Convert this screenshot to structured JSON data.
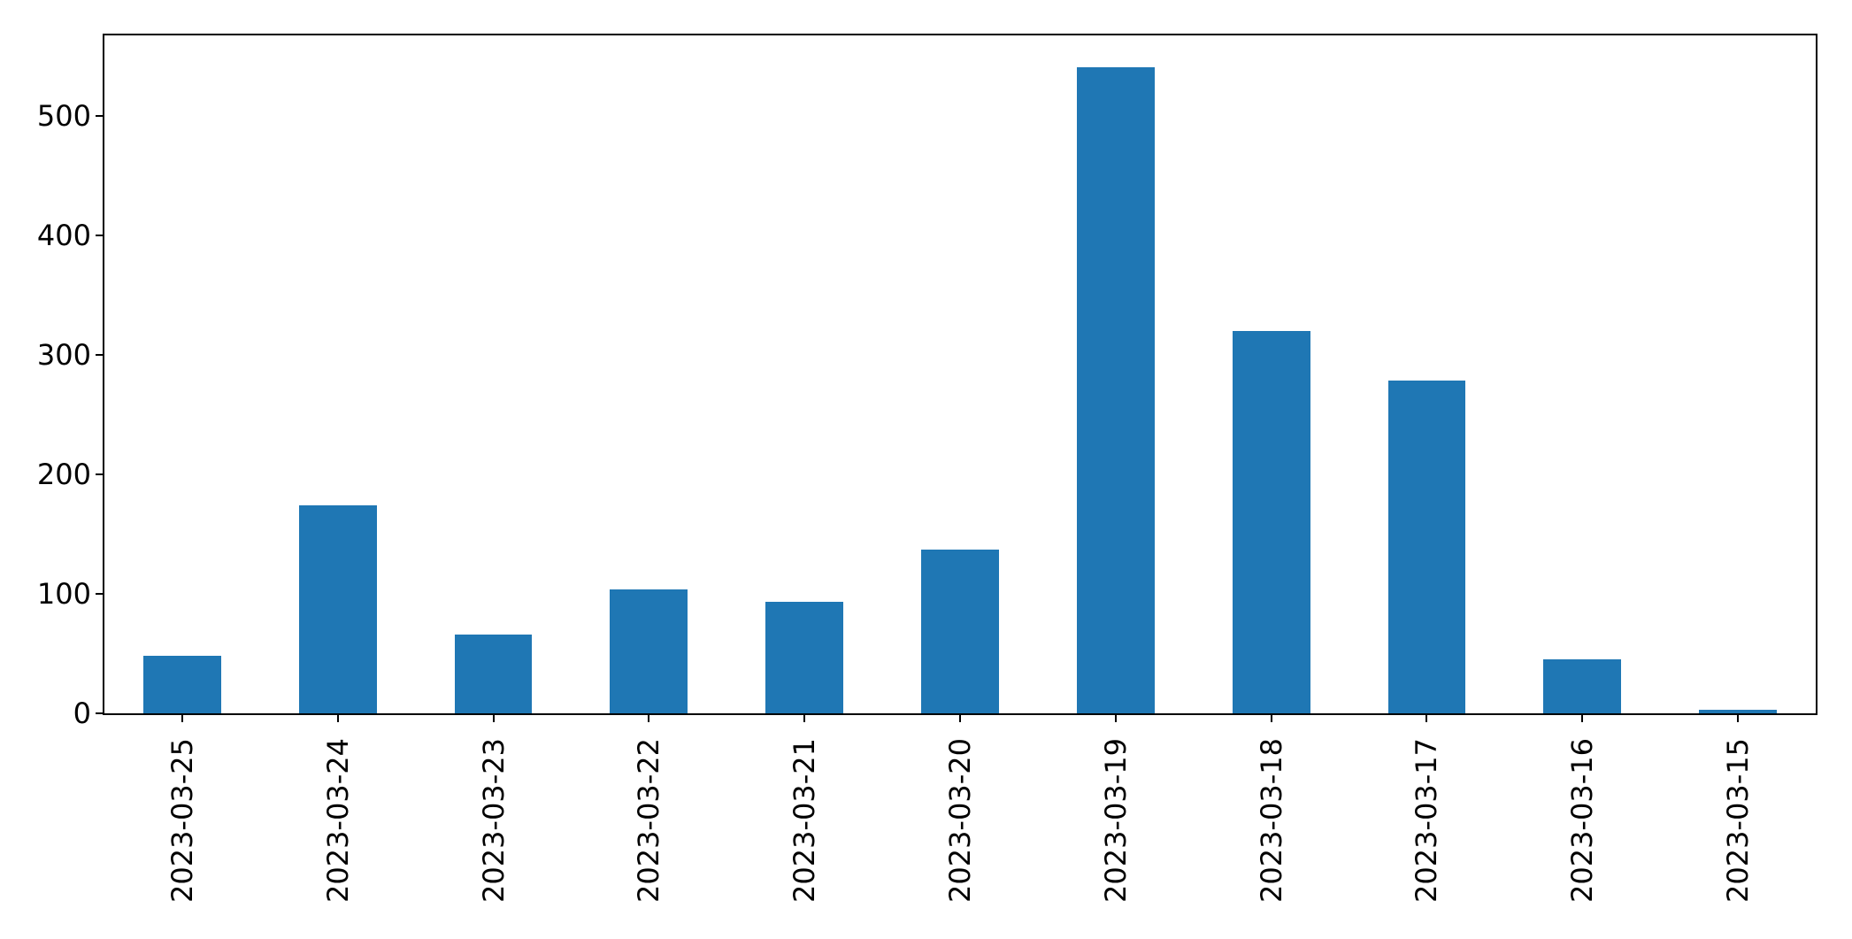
{
  "chart_data": {
    "type": "bar",
    "categories": [
      "2023-03-25",
      "2023-03-24",
      "2023-03-23",
      "2023-03-22",
      "2023-03-21",
      "2023-03-20",
      "2023-03-19",
      "2023-03-18",
      "2023-03-17",
      "2023-03-16",
      "2023-03-15"
    ],
    "values": [
      48,
      174,
      66,
      104,
      93,
      137,
      540,
      320,
      278,
      45,
      3
    ],
    "title": "",
    "xlabel": "",
    "ylabel": "",
    "ylim": [
      0,
      567
    ],
    "yticks": [
      0,
      100,
      200,
      300,
      400,
      500
    ],
    "ytick_labels": [
      "0",
      "100",
      "200",
      "300",
      "400",
      "500"
    ],
    "grid": false,
    "legend": false,
    "bar_color": "#1f77b4",
    "axis_color": "#000000",
    "text_color": "#000000",
    "background_color": "#ffffff"
  }
}
